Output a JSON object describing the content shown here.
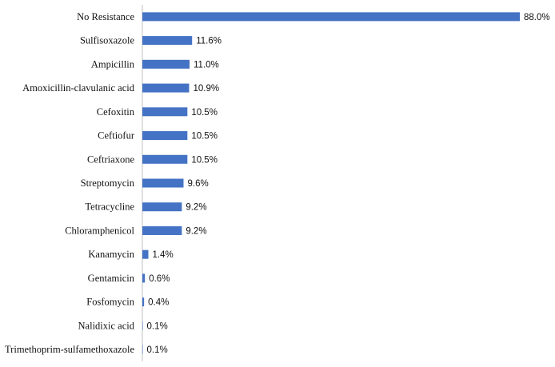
{
  "chart_data": {
    "type": "bar",
    "orientation": "horizontal",
    "categories": [
      "No Resistance",
      "Sulfisoxazole",
      "Ampicillin",
      "Amoxicillin-clavulanic acid",
      "Cefoxitin",
      "Ceftiofur",
      "Ceftriaxone",
      "Streptomycin",
      "Tetracycline",
      "Chloramphenicol",
      "Kanamycin",
      "Gentamicin",
      "Fosfomycin",
      "Nalidixic acid",
      "Trimethoprim-sulfamethoxazole"
    ],
    "values": [
      88.0,
      11.6,
      11.0,
      10.9,
      10.5,
      10.5,
      10.5,
      9.6,
      9.2,
      9.2,
      1.4,
      0.6,
      0.4,
      0.1,
      0.1
    ],
    "value_labels": [
      "88.0%",
      "11.6%",
      "11.0%",
      "10.9%",
      "10.5%",
      "10.5%",
      "10.5%",
      "9.6%",
      "9.2%",
      "9.2%",
      "1.4%",
      "0.6%",
      "0.4%",
      "0.1%",
      "0.1%"
    ],
    "title": "",
    "xlabel": "",
    "ylabel": "",
    "xlim": [
      0,
      88
    ],
    "grid": false,
    "legend": "none",
    "bar_color": "#4472C4",
    "axis_color": "#BFBFBF"
  }
}
